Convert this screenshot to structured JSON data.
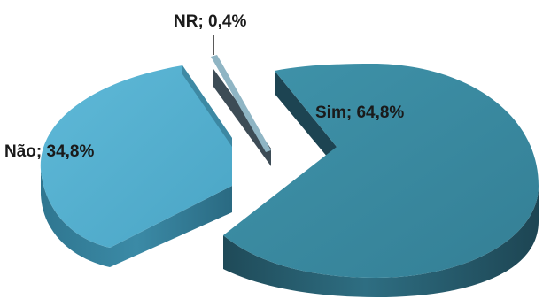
{
  "chart_data": {
    "type": "pie",
    "three_d": true,
    "exploded": true,
    "slices": [
      {
        "label": "Sim",
        "value": 64.8,
        "display": "Sim; 64,8%",
        "color": "#3a8ca3",
        "side_color": "#24596b"
      },
      {
        "label": "NR",
        "value": 0.4,
        "display": "NR; 0,4%",
        "color": "#8fb5c4",
        "side_color": "#3d4c56"
      },
      {
        "label": "Não",
        "value": 34.8,
        "display": "Não; 34,8%",
        "color": "#56b1d1",
        "side_color": "#347d98"
      }
    ],
    "legend": "none"
  }
}
